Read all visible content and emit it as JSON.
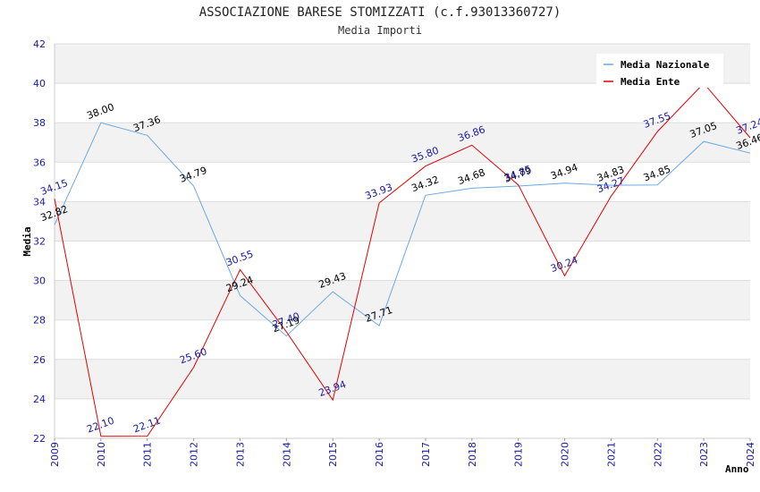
{
  "chart_data": {
    "type": "line",
    "title": "ASSOCIAZIONE BARESE STOMIZZATI (c.f.93013360727)",
    "subtitle": "Media Importi",
    "xlabel": "Anno",
    "ylabel": "Media",
    "ylim": [
      22,
      42
    ],
    "yticks": [
      22,
      24,
      26,
      28,
      30,
      32,
      34,
      36,
      38,
      40,
      42
    ],
    "x": [
      "2009",
      "2010",
      "2011",
      "2012",
      "2013",
      "2014",
      "2015",
      "2016",
      "2017",
      "2018",
      "2019",
      "2020",
      "2021",
      "2022",
      "2023",
      "2024"
    ],
    "legend_position": "top-right",
    "grid": true,
    "series": [
      {
        "name": "Media Nazionale",
        "color": "#6aa9e6",
        "label_color": "#000000",
        "values": [
          32.82,
          38.0,
          37.36,
          34.79,
          29.24,
          27.19,
          29.43,
          27.71,
          34.32,
          34.68,
          34.79,
          34.94,
          34.83,
          34.85,
          37.05,
          36.46
        ],
        "labels": [
          "32.82",
          "38.00",
          "37.36",
          "34.79",
          "29.24",
          "27.19",
          "29.43",
          "27.71",
          "34.32",
          "34.68",
          "34.79",
          "34.94",
          "34.83",
          "34.85",
          "37.05",
          "36.46"
        ]
      },
      {
        "name": "Media Ente",
        "color": "#e00000",
        "label_color": "#1a1aa6",
        "values": [
          34.15,
          22.1,
          22.11,
          25.6,
          30.55,
          27.4,
          23.94,
          33.93,
          35.8,
          36.86,
          34.85,
          30.24,
          34.27,
          37.55,
          40.0,
          37.24
        ],
        "labels": [
          "34.15",
          "22.10",
          "22.11",
          "25.60",
          "30.55",
          "27.40",
          "23.94",
          "33.93",
          "35.80",
          "36.86",
          "34.85",
          "30.24",
          "34.27",
          "37.55",
          "",
          "37.24"
        ]
      }
    ]
  }
}
